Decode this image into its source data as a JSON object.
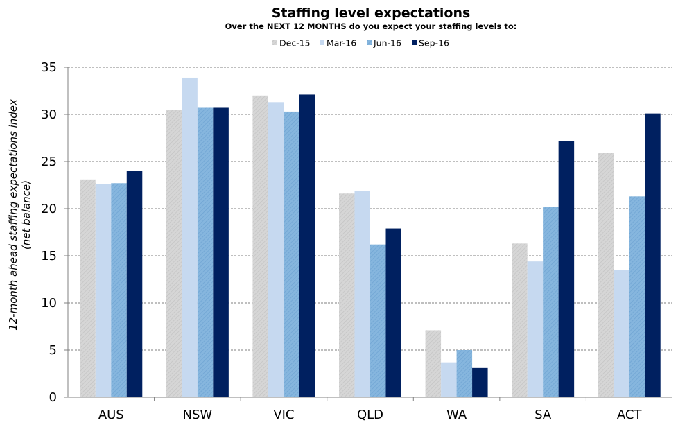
{
  "chart_data": {
    "type": "bar",
    "title": "Staffing level expectations",
    "subtitle": "Over the NEXT 12 MONTHS do you expect your staffing levels to:",
    "xlabel": "",
    "ylabel_line1": "12-month ahead staffing expectations index",
    "ylabel_line2": "(net balance)",
    "ylim": [
      0,
      35
    ],
    "yticks": [
      "0",
      "5",
      "10",
      "15",
      "20",
      "25",
      "30",
      "35"
    ],
    "grid": true,
    "legend_position": "top-center",
    "categories": [
      "AUS",
      "NSW",
      "VIC",
      "QLD",
      "WA",
      "SA",
      "ACT"
    ],
    "series": [
      {
        "name": "Dec-15",
        "color": "#d3d3d3",
        "pattern": "hatch",
        "values": [
          23.1,
          30.5,
          32.0,
          21.6,
          7.1,
          16.3,
          25.9
        ]
      },
      {
        "name": "Mar-16",
        "color": "#c6d9f0",
        "pattern": "solid",
        "values": [
          22.6,
          33.9,
          31.3,
          21.9,
          3.7,
          14.4,
          13.5
        ]
      },
      {
        "name": "Jun-16",
        "color": "#7fb2dc",
        "pattern": "hatch",
        "values": [
          22.7,
          30.7,
          30.3,
          16.2,
          5.0,
          20.2,
          21.3
        ]
      },
      {
        "name": "Sep-16",
        "color": "#002060",
        "pattern": "solid",
        "values": [
          24.0,
          30.7,
          32.1,
          17.9,
          3.1,
          27.2,
          30.1
        ]
      }
    ]
  }
}
